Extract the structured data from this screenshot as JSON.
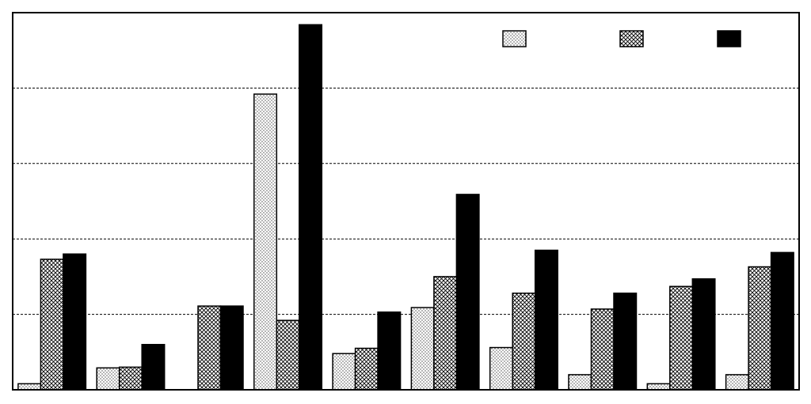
{
  "chart_data": {
    "type": "bar",
    "categories": [
      null,
      null,
      null,
      null,
      null,
      null,
      null,
      null,
      null,
      null
    ],
    "series": [
      {
        "pattern": "dots",
        "color": "#000000",
        "values": [
          0.08,
          0.29,
          0,
          3.92,
          0.48,
          1.09,
          0.56,
          0.2,
          0.08,
          0.2
        ]
      },
      {
        "pattern": "crosshatch",
        "color": "#000000",
        "values": [
          1.73,
          0.3,
          1.11,
          0.92,
          0.55,
          1.5,
          1.28,
          1.07,
          1.37,
          1.63
        ]
      },
      {
        "pattern": "solid",
        "color": "#000000",
        "values": [
          1.8,
          0.6,
          1.11,
          4.84,
          1.03,
          2.59,
          1.85,
          1.28,
          1.47,
          1.82
        ]
      }
    ],
    "ylim": [
      0,
      5
    ],
    "yticks": [
      1,
      2,
      3,
      4
    ],
    "grid": true,
    "legend": "upper right"
  }
}
